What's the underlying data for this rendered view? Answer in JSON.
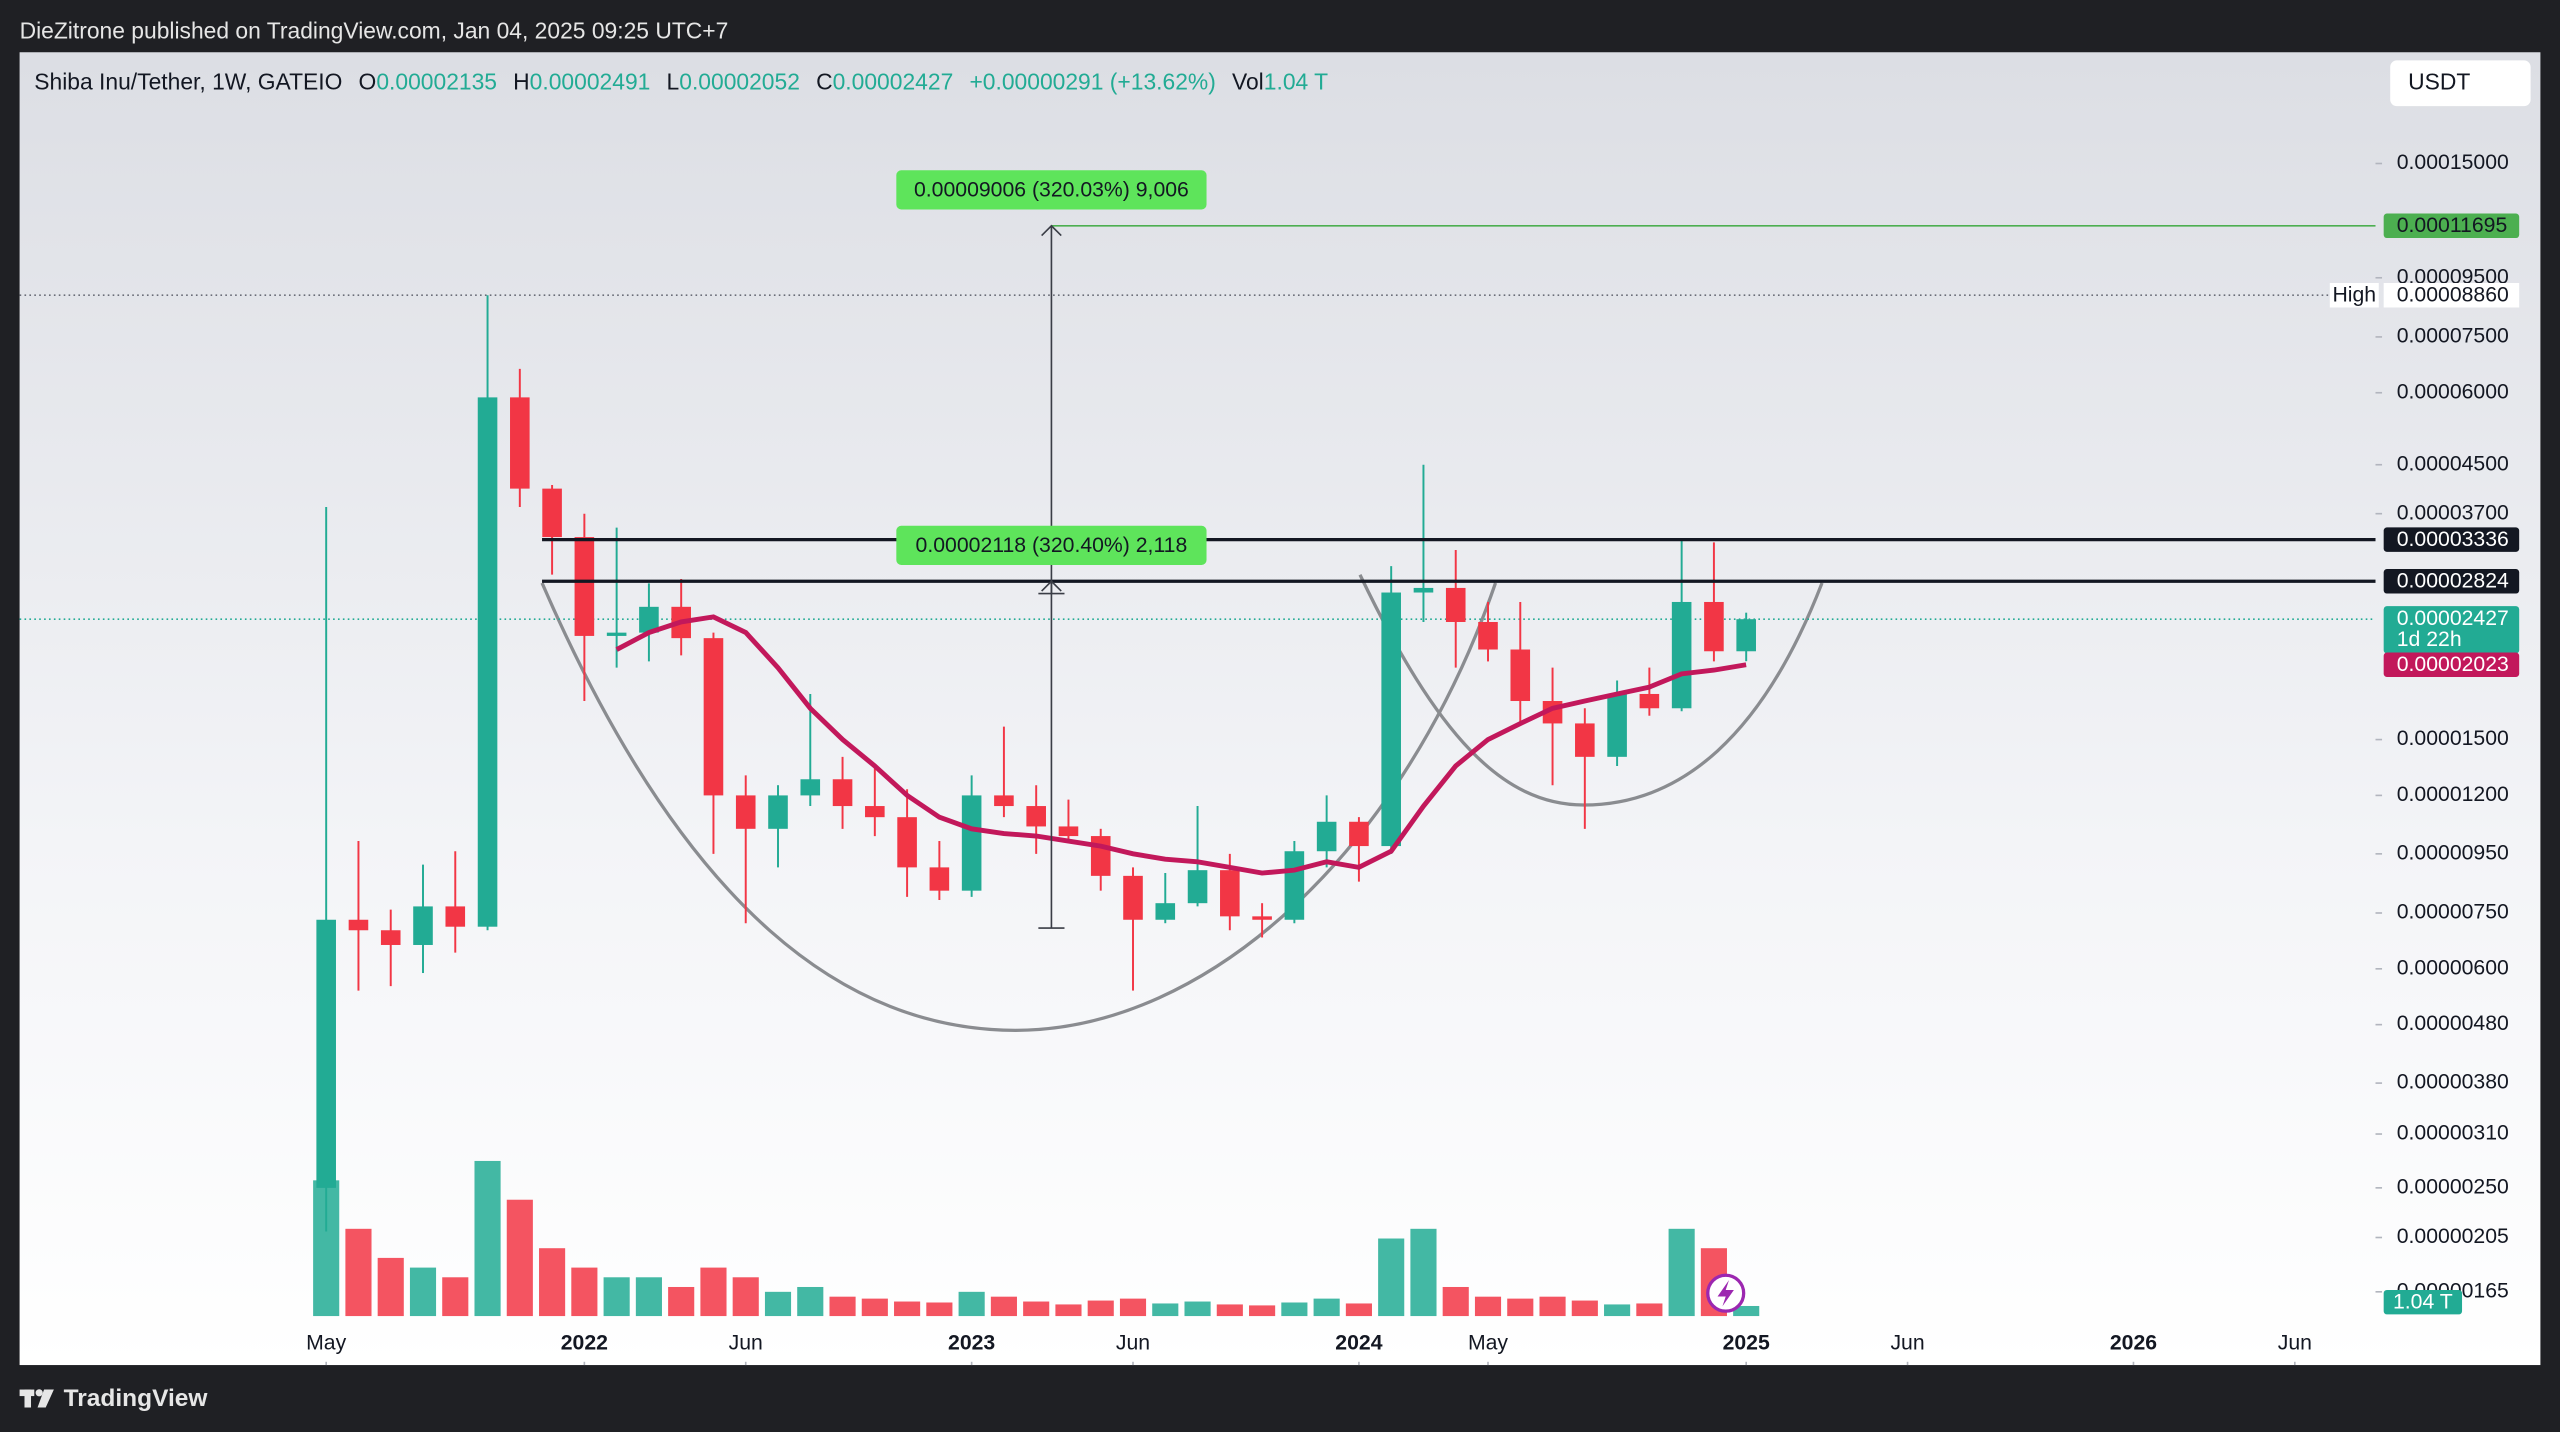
{
  "header": {
    "publisher": "DieZitrone published on TradingView.com, Jan 04, 2025 09:25 UTC+7"
  },
  "footer": {
    "brand": "TradingView"
  },
  "currency_button": "USDT",
  "chart_data": {
    "type": "candlestick",
    "title": "Shiba Inu/Tether, 1W, GATEIO",
    "legend": {
      "o_label": "O",
      "o": "0.00002135",
      "h_label": "H",
      "h": "0.00002491",
      "l_label": "L",
      "l": "0.00002052",
      "c_label": "C",
      "c": "0.00002427",
      "change": "+0.00000291 (+13.62%)",
      "vol_label": "Vol",
      "vol": "1.04 T"
    },
    "x": [
      "2021-05",
      "2021-06",
      "2021-07",
      "2021-08",
      "2021-09",
      "2021-10",
      "2021-11",
      "2021-12",
      "2022-01",
      "2022-02",
      "2022-03",
      "2022-04",
      "2022-05",
      "2022-06",
      "2022-07",
      "2022-08",
      "2022-09",
      "2022-10",
      "2022-11",
      "2022-12",
      "2023-01",
      "2023-02",
      "2023-03",
      "2023-04",
      "2023-05",
      "2023-06",
      "2023-07",
      "2023-08",
      "2023-09",
      "2023-10",
      "2023-11",
      "2023-12",
      "2024-01",
      "2024-02",
      "2024-03",
      "2024-04",
      "2024-05",
      "2024-06",
      "2024-07",
      "2024-08",
      "2024-09",
      "2024-10",
      "2024-11",
      "2024-12",
      "2025-01"
    ],
    "open": [
      2.5e-06,
      7.3e-06,
      7e-06,
      6.6e-06,
      7.7e-06,
      7.1e-06,
      5.89e-05,
      4.09e-05,
      3.37e-05,
      2.27e-05,
      2.3e-05,
      2.55e-05,
      2.25e-05,
      1.2e-05,
      1.05e-05,
      1.2e-05,
      1.28e-05,
      1.15e-05,
      1.1e-05,
      9e-06,
      8.2e-06,
      1.2e-05,
      1.15e-05,
      1.06e-05,
      1.02e-05,
      8.7e-06,
      7.3e-06,
      7.8e-06,
      8.9e-06,
      7.4e-06,
      7.3e-06,
      9.6e-06,
      1.08e-05,
      9.8e-06,
      2.7e-05,
      2.75e-05,
      2.4e-05,
      2.15e-05,
      1.75e-05,
      1.6e-05,
      1.4e-05,
      1.8e-05,
      1.7e-05,
      2.6e-05,
      2.135e-05
    ],
    "high": [
      3.8e-05,
      1e-05,
      7.6e-06,
      9.1e-06,
      9.6e-06,
      8.86e-05,
      6.6e-05,
      4.15e-05,
      3.7e-05,
      3.5e-05,
      2.8e-05,
      2.85e-05,
      2.3e-05,
      1.3e-05,
      1.25e-05,
      1.8e-05,
      1.4e-05,
      1.35e-05,
      1.23e-05,
      1e-05,
      1.3e-05,
      1.58e-05,
      1.25e-05,
      1.18e-05,
      1.05e-05,
      9e-06,
      8.8e-06,
      1.15e-05,
      9.5e-06,
      7.8e-06,
      1e-05,
      1.2e-05,
      1.1e-05,
      3e-05,
      4.5e-05,
      3.2e-05,
      2.6e-05,
      2.6e-05,
      2e-05,
      1.7e-05,
      1.9e-05,
      2e-05,
      3.35e-05,
      3.3e-05,
      2.491e-05
    ],
    "low": [
      2.1e-06,
      5.5e-06,
      5.6e-06,
      5.9e-06,
      6.4e-06,
      7e-06,
      3.8e-05,
      2.9e-05,
      1.75e-05,
      2e-05,
      2.05e-05,
      2.1e-05,
      9.5e-06,
      7.2e-06,
      9e-06,
      1.15e-05,
      1.05e-05,
      1.02e-05,
      8e-06,
      7.9e-06,
      8e-06,
      1.1e-05,
      9.5e-06,
      1e-05,
      8.2e-06,
      5.5e-06,
      7.2e-06,
      7.7e-06,
      7e-06,
      6.8e-06,
      7.2e-06,
      9e-06,
      8.5e-06,
      9.5e-06,
      2.4e-05,
      2e-05,
      2.05e-05,
      1.6e-05,
      1.25e-05,
      1.05e-05,
      1.35e-05,
      1.65e-05,
      1.68e-05,
      2.05e-05,
      2.052e-05
    ],
    "close": [
      7.3e-06,
      7e-06,
      6.6e-06,
      7.7e-06,
      7.1e-06,
      5.89e-05,
      4.09e-05,
      3.37e-05,
      2.27e-05,
      2.3e-05,
      2.55e-05,
      2.25e-05,
      1.2e-05,
      1.05e-05,
      1.2e-05,
      1.28e-05,
      1.15e-05,
      1.1e-05,
      9e-06,
      8.2e-06,
      1.2e-05,
      1.15e-05,
      1.06e-05,
      1.02e-05,
      8.7e-06,
      7.3e-06,
      7.8e-06,
      8.9e-06,
      7.4e-06,
      7.3e-06,
      9.6e-06,
      1.08e-05,
      9.8e-06,
      2.7e-05,
      2.75e-05,
      2.4e-05,
      2.15e-05,
      1.75e-05,
      1.6e-05,
      1.4e-05,
      1.8e-05,
      1.7e-05,
      2.6e-05,
      2.135e-05,
      2.427e-05
    ],
    "volume": [
      14,
      9,
      6,
      5,
      4,
      16,
      12,
      7,
      5,
      4,
      4,
      3,
      5,
      4,
      2.5,
      3,
      2,
      1.8,
      1.5,
      1.4,
      2.5,
      2,
      1.5,
      1.2,
      1.6,
      1.8,
      1.3,
      1.5,
      1.2,
      1.1,
      1.4,
      1.8,
      1.3,
      8,
      9,
      3,
      2,
      1.8,
      2,
      1.6,
      1.2,
      1.3,
      9,
      7,
      1.04
    ],
    "ma": {
      "color": "#c2185b",
      "values": [
        null,
        null,
        null,
        null,
        null,
        null,
        null,
        null,
        null,
        2.15e-05,
        2.3e-05,
        2.4e-05,
        2.45e-05,
        2.3e-05,
        2e-05,
        1.7e-05,
        1.5e-05,
        1.35e-05,
        1.2e-05,
        1.1e-05,
        1.05e-05,
        1.03e-05,
        1.02e-05,
        1e-05,
        9.8e-06,
        9.5e-06,
        9.3e-06,
        9.2e-06,
        9e-06,
        8.8e-06,
        8.9e-06,
        9.2e-06,
        9e-06,
        9.6e-06,
        1.15e-05,
        1.35e-05,
        1.5e-05,
        1.6e-05,
        1.7e-05,
        1.75e-05,
        1.8e-05,
        1.85e-05,
        1.95e-05,
        1.98e-05,
        2.023e-05
      ]
    },
    "colors": {
      "up": "#22ab94",
      "down": "#f23645"
    },
    "log_scale": true,
    "ylim": [
      1.44e-06,
      0.000234
    ],
    "yticks": [
      {
        "value": 0.00015,
        "label": "0.00015000"
      },
      {
        "value": 9.5e-05,
        "label": "0.00009500"
      },
      {
        "value": 7.5e-05,
        "label": "0.00007500"
      },
      {
        "value": 6e-05,
        "label": "0.00006000"
      },
      {
        "value": 4.5e-05,
        "label": "0.00004500"
      },
      {
        "value": 3.7e-05,
        "label": "0.00003700"
      },
      {
        "value": 1.5e-05,
        "label": "0.00001500"
      },
      {
        "value": 1.2e-05,
        "label": "0.00001200"
      },
      {
        "value": 9.5e-06,
        "label": "0.00000950"
      },
      {
        "value": 7.5e-06,
        "label": "0.00000750"
      },
      {
        "value": 6e-06,
        "label": "0.00000600"
      },
      {
        "value": 4.8e-06,
        "label": "0.00000480"
      },
      {
        "value": 3.8e-06,
        "label": "0.00000380"
      },
      {
        "value": 3.1e-06,
        "label": "0.00000310"
      },
      {
        "value": 2.5e-06,
        "label": "0.00000250"
      },
      {
        "value": 2.05e-06,
        "label": "0.00000205"
      },
      {
        "value": 1.65e-06,
        "label": "0.00000165"
      }
    ],
    "xlim": [
      "2020-08",
      "2026-09"
    ],
    "xticks": [
      {
        "value": "2021-05",
        "label": "May"
      },
      {
        "value": "2022-01",
        "label": "2022"
      },
      {
        "value": "2022-06",
        "label": "Jun"
      },
      {
        "value": "2023-01",
        "label": "2023"
      },
      {
        "value": "2023-06",
        "label": "Jun"
      },
      {
        "value": "2024-01",
        "label": "2024"
      },
      {
        "value": "2024-05",
        "label": "May"
      },
      {
        "value": "2025-01",
        "label": "2025"
      },
      {
        "value": "2025-06",
        "label": "Jun"
      },
      {
        "value": "2026-01",
        "label": "2026"
      },
      {
        "value": "2026-06",
        "label": "Jun"
      }
    ],
    "price_lines": [
      {
        "value": 0.00011695,
        "label": "0.00011695",
        "color": "#4caf50",
        "text_color": "#131722"
      },
      {
        "value": 3.336e-05,
        "label": "0.00003336",
        "color": "#131722",
        "text_color": "#ffffff"
      },
      {
        "value": 2.824e-05,
        "label": "0.00002824",
        "color": "#131722",
        "text_color": "#ffffff"
      }
    ],
    "high_marker": {
      "name": "High",
      "value": 8.86e-05,
      "label": "0.00008860"
    },
    "last": {
      "value": 2.427e-05,
      "label": "0.00002427",
      "countdown": "1d 22h"
    },
    "ma_last": {
      "value": 2.023e-05,
      "label": "0.00002023"
    },
    "measurements": [
      {
        "value": 9.006e-05,
        "label": "0.00009006 (320.03%) 9,006",
        "to": 0.00011695
      },
      {
        "value": 2.118e-05,
        "label": "0.00002118 (320.40%) 2,118",
        "to": 2.824e-05
      }
    ]
  }
}
